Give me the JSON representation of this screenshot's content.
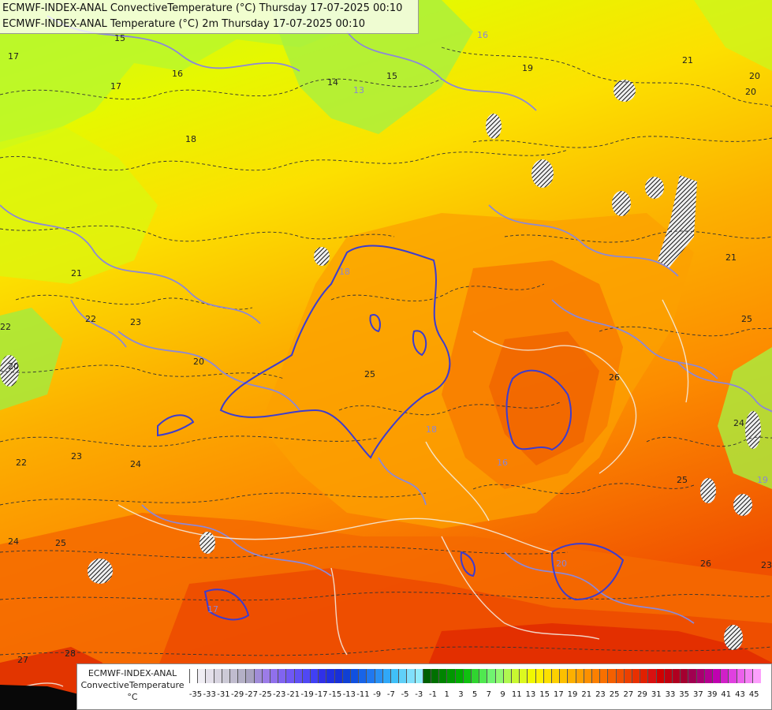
{
  "titles": {
    "line1": "ECMWF-INDEX-ANAL ConvectiveTemperature (°C) Thursday 17-07-2025 00:10",
    "line2": "ECMWF-INDEX-ANAL Temperature (°C) 2m Thursday 17-07-2025 00:10"
  },
  "legend": {
    "line1": "ECMWF-INDEX-ANAL",
    "line2": "ConvectiveTemperature",
    "line3": "°C",
    "tick_labels": [
      "-35",
      "-33",
      "-31",
      "-29",
      "-27",
      "-25",
      "-23",
      "-21",
      "-19",
      "-17",
      "-15",
      "-13",
      "-11",
      "-9",
      "-7",
      "-5",
      "-3",
      "-1",
      "1",
      "3",
      "5",
      "7",
      "9",
      "11",
      "13",
      "15",
      "17",
      "19",
      "21",
      "23",
      "25",
      "27",
      "29",
      "31",
      "33",
      "35",
      "37",
      "39",
      "41",
      "43",
      "45"
    ],
    "colors": [
      "#ffffff",
      "#f0eef4",
      "#e4e0ea",
      "#d8d4e0",
      "#cccad6",
      "#c0bcce",
      "#b4b0c6",
      "#a8a2c0",
      "#a08cd8",
      "#9c7ce8",
      "#9070ec",
      "#8064f0",
      "#7058f4",
      "#6050f4",
      "#5048f4",
      "#4040f4",
      "#3030e8",
      "#2030e0",
      "#1830d8",
      "#1040d4",
      "#1050e0",
      "#1864e8",
      "#2078f0",
      "#2890f4",
      "#30a8f8",
      "#40c0f8",
      "#60d0f8",
      "#80e0fc",
      "#90ecfc",
      "#006000",
      "#007000",
      "#008400",
      "#009800",
      "#00ac00",
      "#10c010",
      "#30d430",
      "#50e850",
      "#70f470",
      "#90f870",
      "#b0f850",
      "#c8f830",
      "#dcf820",
      "#f0f800",
      "#fcf000",
      "#fce000",
      "#fcd000",
      "#fcc000",
      "#fcb000",
      "#fca000",
      "#fc9000",
      "#fc8000",
      "#f87000",
      "#f46000",
      "#f05000",
      "#ec4000",
      "#e83000",
      "#e02000",
      "#d81010",
      "#d00000",
      "#c00010",
      "#b00020",
      "#a40030",
      "#a00050",
      "#a80070",
      "#b40090",
      "#c000b0",
      "#d020c8",
      "#e040e0",
      "#ec60ec",
      "#f480f4",
      "#fca0fc"
    ]
  },
  "map": {
    "contour_labels_temperature": [
      "15",
      "14",
      "15",
      "16",
      "17",
      "17",
      "18",
      "19",
      "20",
      "21",
      "20",
      "21",
      "22",
      "22",
      "23",
      "22",
      "20",
      "20",
      "23",
      "24",
      "25",
      "24",
      "25",
      "26",
      "27",
      "28",
      "25",
      "26",
      "25",
      "21",
      "23",
      "24"
    ],
    "contour_labels_convective": [
      "13",
      "16",
      "18",
      "18",
      "17",
      "16",
      "20",
      "19"
    ]
  }
}
